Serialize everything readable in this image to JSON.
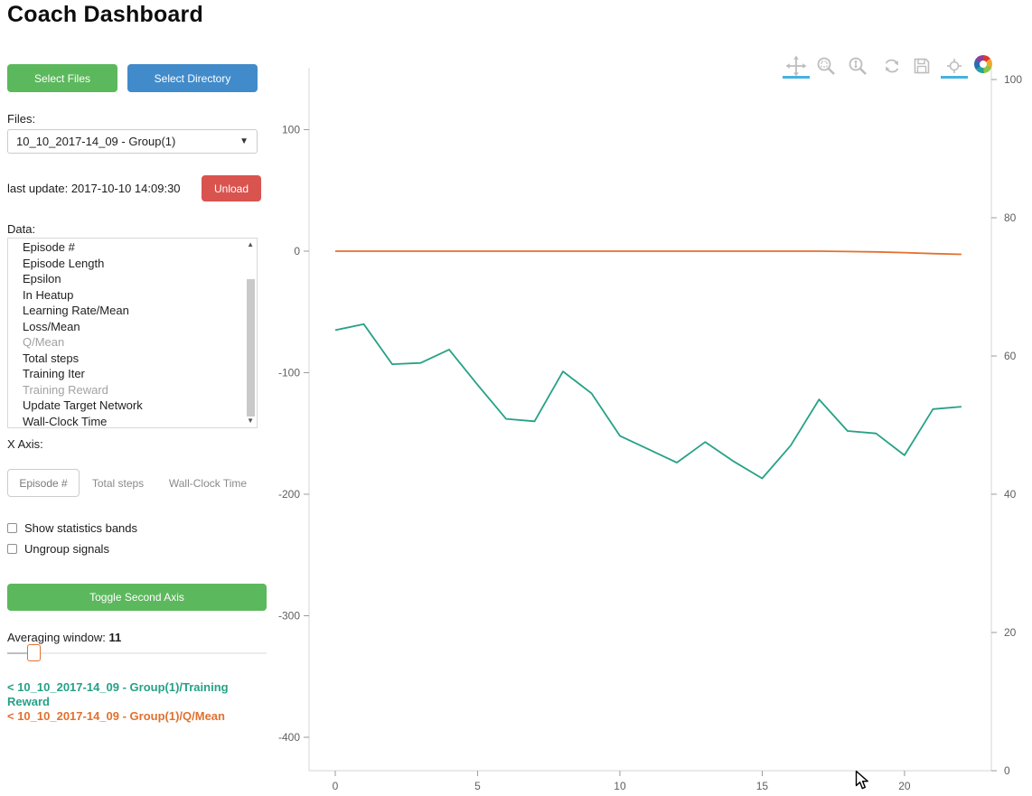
{
  "title": "Coach Dashboard",
  "sidebar": {
    "select_files_label": "Select Files",
    "select_directory_label": "Select Directory",
    "files_label": "Files:",
    "files_selected": "10_10_2017-14_09 - Group(1)",
    "last_update": "last update: 2017-10-10 14:09:30",
    "unload_label": "Unload",
    "data_label": "Data:",
    "data_items": [
      {
        "label": "Episode #",
        "dimmed": false
      },
      {
        "label": "Episode Length",
        "dimmed": false
      },
      {
        "label": "Epsilon",
        "dimmed": false
      },
      {
        "label": "In Heatup",
        "dimmed": false
      },
      {
        "label": "Learning Rate/Mean",
        "dimmed": false
      },
      {
        "label": "Loss/Mean",
        "dimmed": false
      },
      {
        "label": "Q/Mean",
        "dimmed": true
      },
      {
        "label": "Total steps",
        "dimmed": false
      },
      {
        "label": "Training Iter",
        "dimmed": false
      },
      {
        "label": "Training Reward",
        "dimmed": true
      },
      {
        "label": "Update Target Network",
        "dimmed": false
      },
      {
        "label": "Wall-Clock Time",
        "dimmed": false
      }
    ],
    "x_axis_label": "X Axis:",
    "x_axis_tabs": [
      {
        "label": "Episode #",
        "active": true
      },
      {
        "label": "Total steps",
        "active": false
      },
      {
        "label": "Wall-Clock Time",
        "active": false
      }
    ],
    "checkboxes": [
      {
        "label": "Show statistics bands",
        "checked": false
      },
      {
        "label": "Ungroup signals",
        "checked": false
      }
    ],
    "toggle_second_axis_label": "Toggle Second Axis",
    "averaging_window_label": "Averaging window:",
    "averaging_window_value": "11",
    "legend": [
      {
        "label": "< 10_10_2017-14_09 - Group(1)/Training Reward",
        "color": "#26a186"
      },
      {
        "label": "< 10_10_2017-14_09 - Group(1)/Q/Mean",
        "color": "#e2712e"
      }
    ]
  },
  "toolbar": {
    "tools": [
      {
        "name": "pan",
        "active": true
      },
      {
        "name": "box-zoom",
        "active": false
      },
      {
        "name": "wheel-zoom",
        "active": false
      },
      {
        "name": "reset",
        "active": false
      },
      {
        "name": "save",
        "active": false
      },
      {
        "name": "hover",
        "active": true
      }
    ],
    "active_indicator_color": "#46b2e0"
  },
  "chart_data": {
    "type": "line",
    "title": "",
    "x": [
      0,
      1,
      2,
      3,
      4,
      5,
      6,
      7,
      8,
      9,
      10,
      11,
      12,
      13,
      14,
      15,
      16,
      17,
      18,
      19,
      20,
      21,
      22
    ],
    "series": [
      {
        "name": "10_10_2017-14_09 - Group(1)/Training Reward",
        "color": "#26a186",
        "axis": "left",
        "values": [
          -65,
          -60,
          -93,
          -92,
          -81,
          -110,
          -138,
          -140,
          -99,
          -117,
          -152,
          -163,
          -174,
          -157,
          -173,
          -187,
          -160,
          -122,
          -148,
          -150,
          -168,
          -130,
          -128
        ]
      },
      {
        "name": "10_10_2017-14_09 - Group(1)/Q/Mean",
        "color": "#e2712e",
        "axis": "left",
        "values": [
          0,
          0,
          0,
          0,
          0,
          0,
          0,
          0,
          0,
          0,
          0,
          0,
          0,
          0,
          0,
          0,
          0,
          0,
          -0.3,
          -0.6,
          -1.2,
          -2,
          -2.6
        ]
      }
    ],
    "x_axis": {
      "ticks": [
        0,
        5,
        10,
        15,
        20
      ],
      "range": [
        -0.92,
        23.05
      ]
    },
    "left_axis": {
      "ticks": [
        100,
        0,
        -100,
        -200,
        -300,
        -400
      ],
      "range": [
        -427.5,
        150.9
      ]
    },
    "right_axis": {
      "ticks": [
        100,
        80,
        60,
        40,
        20,
        0
      ],
      "range": [
        0,
        101.7
      ]
    },
    "grid": false,
    "legend_position": "sidebar"
  }
}
